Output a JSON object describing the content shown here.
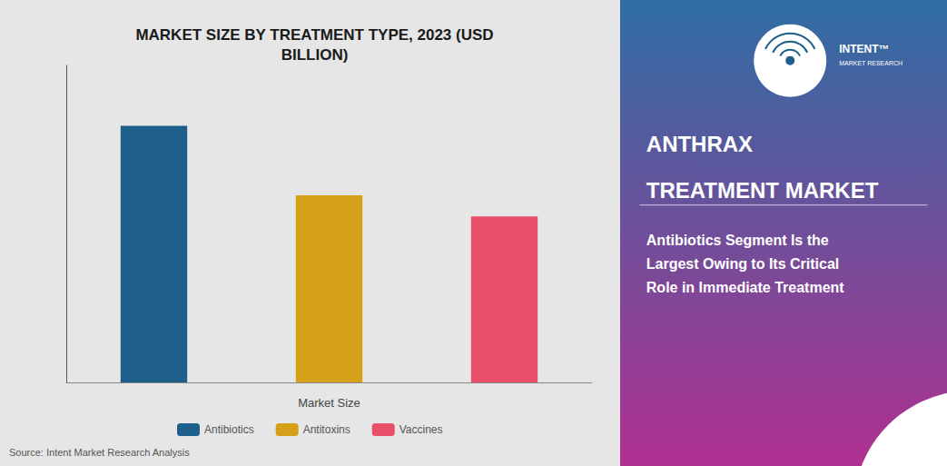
{
  "chart_data": {
    "type": "bar",
    "title": "MARKET SIZE BY TREATMENT TYPE, 2023 (USD\nBILLION)",
    "categories": [
      "Antibiotics",
      "Antitoxins",
      "Vaccines"
    ],
    "values": [
      0.85,
      0.62,
      0.55
    ],
    "colors": [
      "#1d5f8a",
      "#d4a017",
      "#e8506a"
    ],
    "xlabel": "Market Size",
    "ylim": [
      0,
      1.05
    ],
    "yticks": [],
    "grid": false,
    "tick_labels": false,
    "legend": "bottom",
    "annotations": [
      "Source: Intent Market Research Analysis",
      "INTENT™",
      "MARKET RESEARCH",
      "ANTHRAX",
      "TREATMENT MARKET",
      "Antibiotics Segment Is the\nLargest Owing to Its Critical\nRole in Immediate Treatment"
    ]
  }
}
